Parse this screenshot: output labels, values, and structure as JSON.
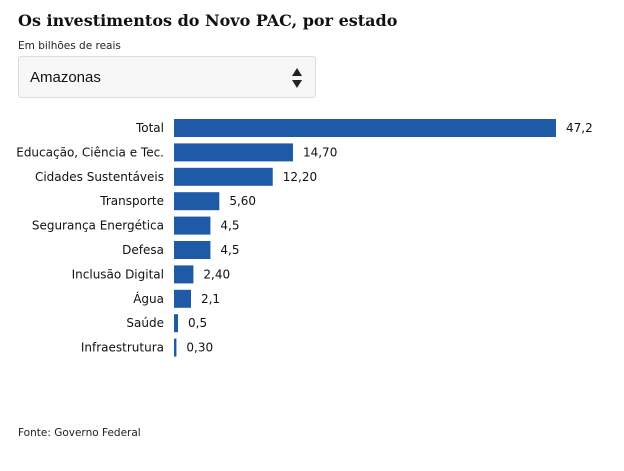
{
  "header": {
    "title": "Os investimentos do Novo PAC, por estado",
    "subtitle": "Em bilhões de reais"
  },
  "state_select": {
    "selected": "Amazonas",
    "icon": "up-down-arrows-icon"
  },
  "footer": {
    "source": "Fonte: Governo Federal"
  },
  "colors": {
    "bar": "#1f5aa6",
    "text": "#111111"
  },
  "chart_data": {
    "type": "bar",
    "orientation": "horizontal",
    "title": "Os investimentos do Novo PAC, por estado",
    "subtitle": "Em bilhões de reais",
    "categories": [
      "Total",
      "Educação, Ciência e Tec.",
      "Cidades Sustentáveis",
      "Transporte",
      "Segurança Energética",
      "Defesa",
      "Inclusão Digital",
      "Água",
      "Saúde",
      "Infraestrutura"
    ],
    "values": [
      47.2,
      14.7,
      12.2,
      5.6,
      4.5,
      4.5,
      2.4,
      2.1,
      0.5,
      0.3
    ],
    "value_labels": [
      "47,2",
      "14,70",
      "12,20",
      "5,60",
      "4,5",
      "4,5",
      "2,40",
      "2,1",
      "0,5",
      "0,30"
    ],
    "xlim": [
      0,
      47.2
    ],
    "grid": false,
    "legend": "none"
  }
}
